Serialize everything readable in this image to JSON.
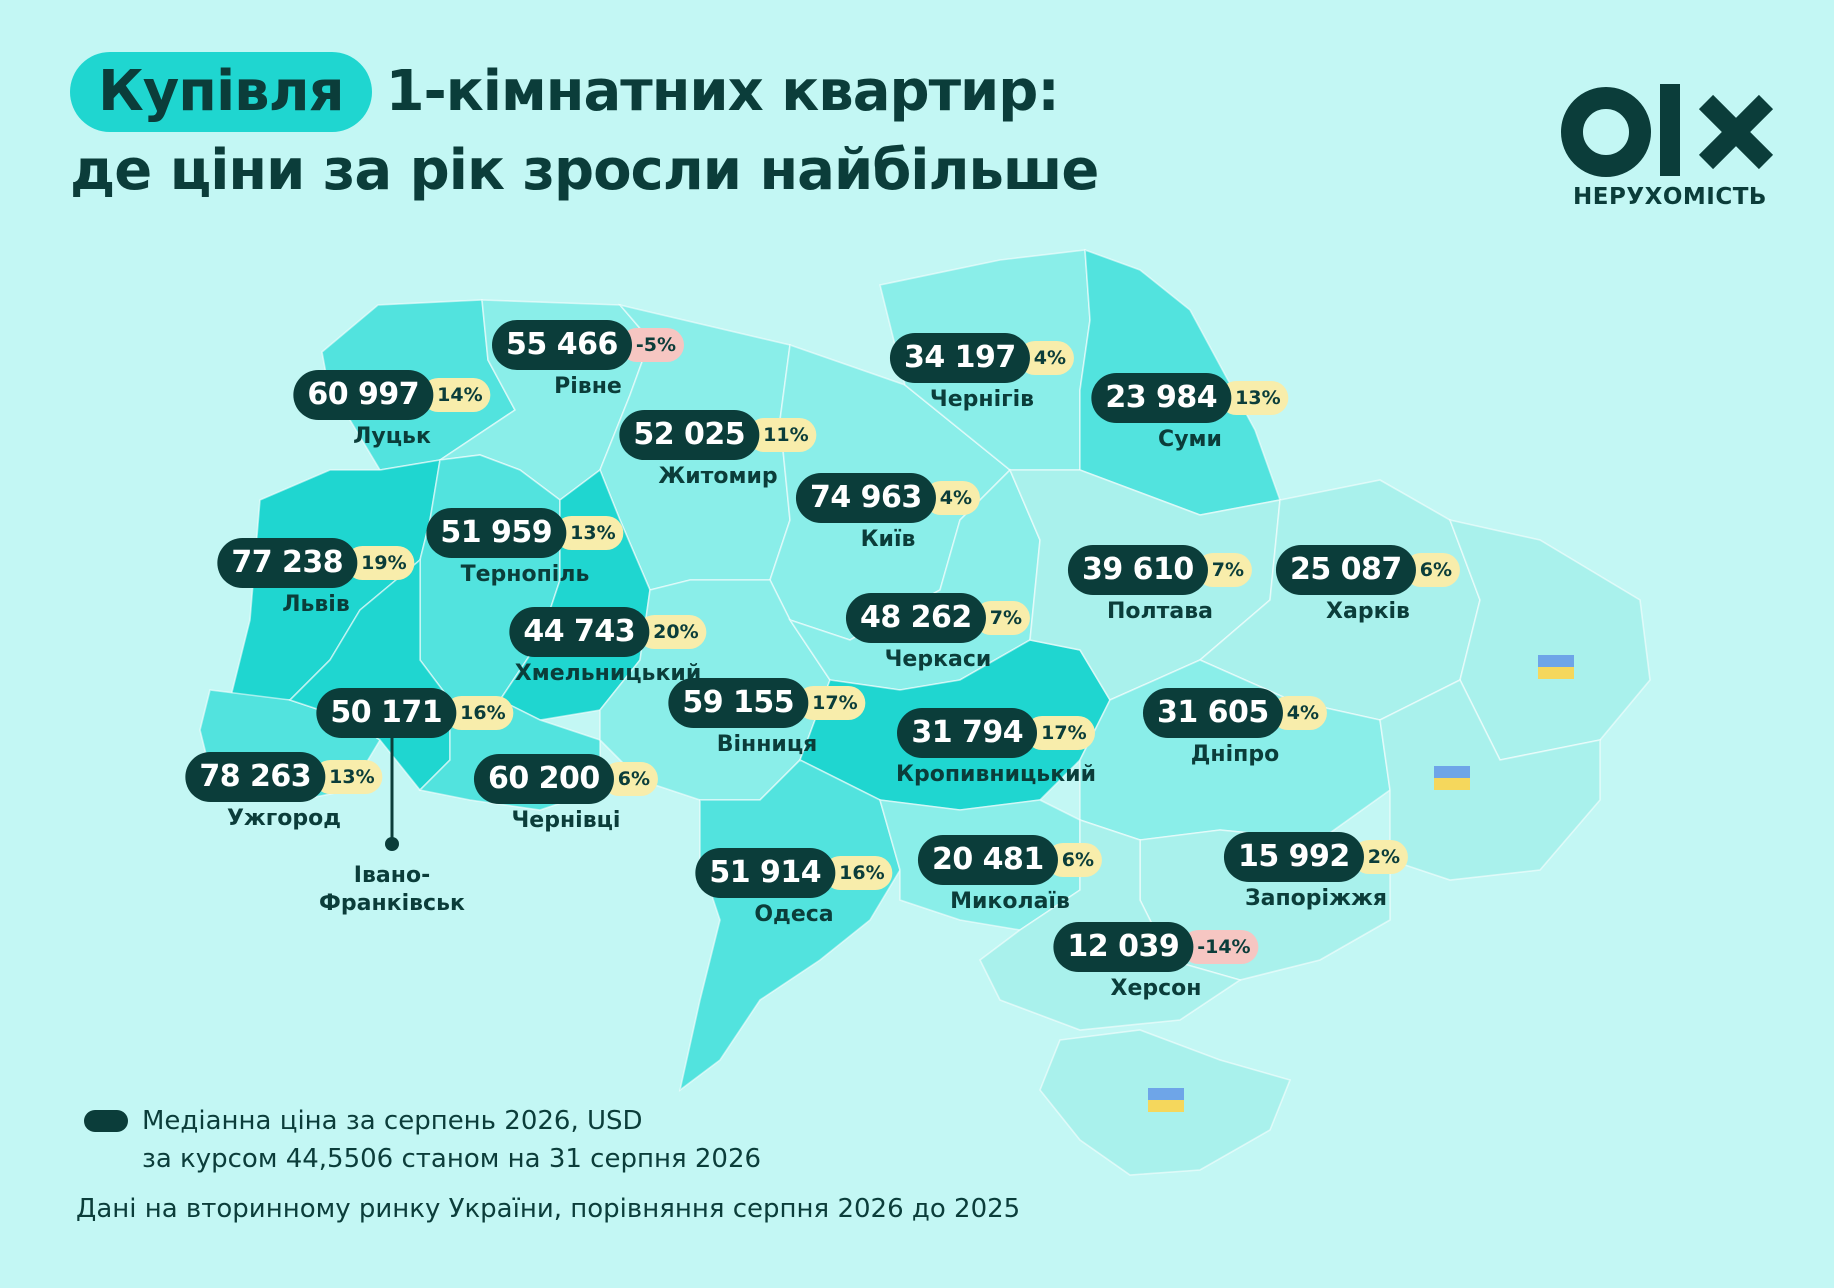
{
  "title": {
    "highlight": "Купівля",
    "line1_rest": "1-кімнатних квартир:",
    "line2": "де ціни за рік зросли найбільше"
  },
  "logo": {
    "text": "НЕРУХОМІСТЬ"
  },
  "colors": {
    "background": "#c3f7f4",
    "price_pill": "#0b3d3a",
    "pct_positive": "#f8edab",
    "pct_negative": "#f6c6c2",
    "region_dark": "#1fd6d0",
    "region_mid": "#52e3de",
    "region_light": "#8aeee9",
    "region_pale": "#a9f1ec"
  },
  "cities": [
    {
      "name": "Луцьк",
      "price": "60 997",
      "pct": "14%"
    },
    {
      "name": "Рівне",
      "price": "55 466",
      "pct": "-5%"
    },
    {
      "name": "Житомир",
      "price": "52 025",
      "pct": "11%"
    },
    {
      "name": "Чернігів",
      "price": "34 197",
      "pct": "4%"
    },
    {
      "name": "Суми",
      "price": "23 984",
      "pct": "13%"
    },
    {
      "name": "Київ",
      "price": "74 963",
      "pct": "4%"
    },
    {
      "name": "Тернопіль",
      "price": "51 959",
      "pct": "13%"
    },
    {
      "name": "Львів",
      "price": "77 238",
      "pct": "19%"
    },
    {
      "name": "Хмельницький",
      "price": "44 743",
      "pct": "20%"
    },
    {
      "name": "Черкаси",
      "price": "48 262",
      "pct": "7%"
    },
    {
      "name": "Полтава",
      "price": "39 610",
      "pct": "7%"
    },
    {
      "name": "Харків",
      "price": "25 087",
      "pct": "6%"
    },
    {
      "name": "Вінниця",
      "price": "59 155",
      "pct": "17%"
    },
    {
      "name": "Кропивницький",
      "price": "31 794",
      "pct": "17%"
    },
    {
      "name": "Дніпро",
      "price": "31 605",
      "pct": "4%"
    },
    {
      "name": "Ужгород",
      "price": "78 263",
      "pct": "13%"
    },
    {
      "name": "Чернівці",
      "price": "60 200",
      "pct": "6%"
    },
    {
      "name": "Одеса",
      "price": "51 914",
      "pct": "16%"
    },
    {
      "name": "Миколаїв",
      "price": "20 481",
      "pct": "6%"
    },
    {
      "name": "Запоріжжя",
      "price": "15 992",
      "pct": "2%"
    },
    {
      "name": "Херсон",
      "price": "12 039",
      "pct": "-14%"
    }
  ],
  "ivano_frankivsk": {
    "name_line1": "Івано-",
    "name_line2": "Франківськ",
    "price": "50 171",
    "pct": "16%"
  },
  "legend": {
    "line1": "Медіанна ціна за серпень 2026, USD",
    "line2": "за курсом 44,5506 станом на 31 серпня 2026"
  },
  "footnote": "Дані на вторинному ринку України, порівняння серпня 2026 до 2025"
}
